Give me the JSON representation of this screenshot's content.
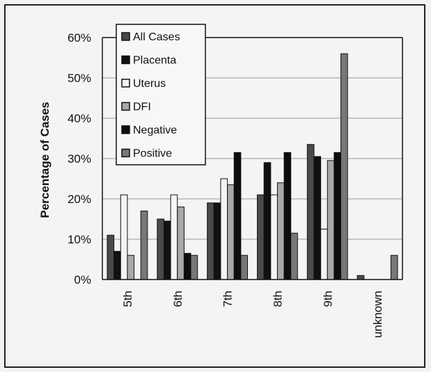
{
  "chart_data": {
    "type": "bar",
    "categories": [
      "5th",
      "6th",
      "7th",
      "8th",
      "9th",
      "unknown"
    ],
    "ylabel": "Percentage of Cases",
    "ylim": [
      0,
      60
    ],
    "yticks": [
      "0%",
      "10%",
      "20%",
      "30%",
      "40%",
      "50%",
      "60%"
    ],
    "grid": true,
    "legend_position": "top-left",
    "series": [
      {
        "name": "All Cases",
        "color": "#4a4a4a",
        "values": [
          11,
          15,
          19,
          21,
          33.5,
          1
        ]
      },
      {
        "name": "Placenta",
        "color": "#111111",
        "values": [
          7,
          14.5,
          19,
          29,
          30.5,
          0
        ]
      },
      {
        "name": "Uterus",
        "color": "#f4f4f4",
        "values": [
          21,
          21,
          25,
          21,
          12.5,
          0
        ]
      },
      {
        "name": "DFI",
        "color": "#a8a8a8",
        "values": [
          6,
          18,
          23.5,
          24,
          29.5,
          0
        ]
      },
      {
        "name": "Negative",
        "color": "#0d0d0d",
        "values": [
          0,
          6.5,
          31.5,
          31.5,
          31.5,
          0
        ]
      },
      {
        "name": "Positive",
        "color": "#777777",
        "values": [
          17,
          6,
          6,
          11.5,
          56,
          6
        ]
      }
    ]
  }
}
